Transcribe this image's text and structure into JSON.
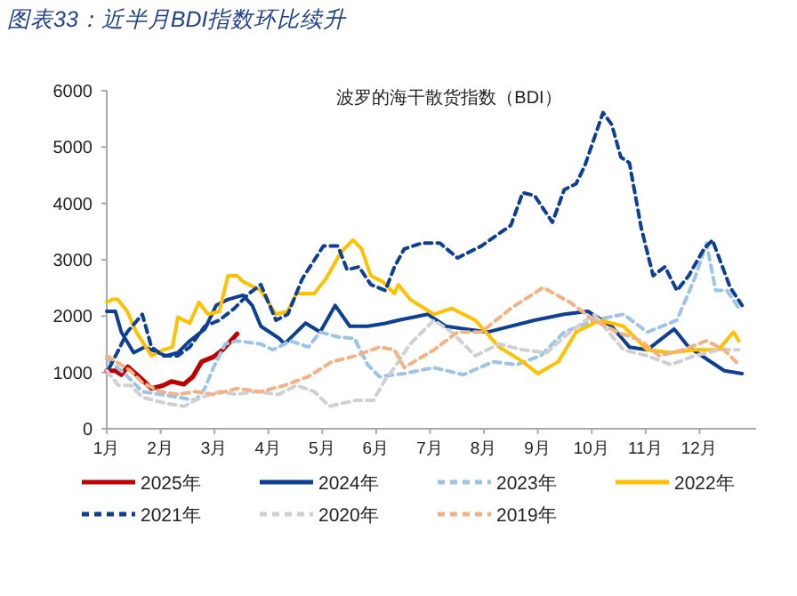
{
  "chart_data": {
    "type": "line",
    "title": "图表33：近半月BDI指数环比续升",
    "subtitle": "波罗的海干散货指数（BDI）",
    "xlim": [
      1,
      13.05
    ],
    "xticks": [
      {
        "value": 1,
        "label": "1月"
      },
      {
        "value": 2,
        "label": "2月"
      },
      {
        "value": 3,
        "label": "3月"
      },
      {
        "value": 4,
        "label": "4月"
      },
      {
        "value": 5,
        "label": "5月"
      },
      {
        "value": 6,
        "label": "6月"
      },
      {
        "value": 7,
        "label": "7月"
      },
      {
        "value": 8,
        "label": "8月"
      },
      {
        "value": 9,
        "label": "9月"
      },
      {
        "value": 10,
        "label": "10月"
      },
      {
        "value": 11,
        "label": "11月"
      },
      {
        "value": 12,
        "label": "12月"
      }
    ],
    "ylim": [
      0,
      6000
    ],
    "yticks": [
      0,
      1000,
      2000,
      3000,
      4000,
      5000,
      6000
    ],
    "grid": false,
    "legend": "bottom",
    "marker": "none",
    "series": [
      {
        "name": "2025年",
        "color": "#c00000",
        "line_style": "solid",
        "x": [
          1,
          1.16,
          1.27,
          1.39,
          1.6,
          1.83,
          2.05,
          2.2,
          2.43,
          2.6,
          2.76,
          2.98,
          3.15,
          3.25,
          3.42
        ],
        "values": [
          1030,
          1030,
          960,
          1100,
          925,
          715,
          770,
          840,
          790,
          925,
          1190,
          1275,
          1400,
          1505,
          1685
        ]
      },
      {
        "name": "2024年",
        "color": "#0d3f94",
        "line_style": "solid",
        "x": [
          1,
          1.16,
          1.27,
          1.5,
          1.7,
          2.1,
          2.32,
          2.54,
          2.82,
          3.03,
          3.25,
          3.53,
          3.7,
          3.86,
          4.19,
          4.3,
          4.52,
          4.69,
          4.96,
          5.24,
          5.51,
          5.84,
          6.17,
          6.41,
          6.96,
          7.29,
          8.06,
          8.94,
          9.49,
          9.93,
          10.37,
          10.7,
          11.03,
          11.53,
          11.8,
          12.13,
          12.46,
          12.79
        ],
        "values": [
          2085,
          2085,
          1716,
          1350,
          1450,
          1295,
          1350,
          1560,
          1770,
          2190,
          2295,
          2370,
          2190,
          1820,
          1610,
          1505,
          1716,
          1875,
          1716,
          2190,
          1820,
          1820,
          1870,
          1927,
          2032,
          1820,
          1716,
          1927,
          2032,
          2085,
          1820,
          1450,
          1400,
          1770,
          1450,
          1240,
          1030,
          980
        ]
      },
      {
        "name": "2023年",
        "color": "#9dc3e6",
        "line_style": "dashed",
        "x": [
          1,
          1.33,
          1.66,
          1.99,
          2.32,
          2.65,
          2.82,
          2.98,
          3.2,
          3.42,
          3.86,
          4.08,
          4.41,
          4.74,
          4.96,
          5.29,
          5.6,
          5.84,
          6.06,
          6.52,
          7.07,
          7.62,
          8.17,
          8.6,
          9.05,
          9.49,
          10.04,
          10.59,
          11.03,
          11.58,
          11.91,
          12.13,
          12.3,
          12.51,
          12.73
        ],
        "values": [
          1240,
          980,
          660,
          610,
          560,
          505,
          715,
          1085,
          1505,
          1560,
          1505,
          1400,
          1560,
          1450,
          1716,
          1630,
          1600,
          1137,
          925,
          980,
          1085,
          960,
          1190,
          1137,
          1295,
          1716,
          1927,
          2032,
          1716,
          1927,
          2665,
          3296,
          2454,
          2454,
          2138
        ]
      },
      {
        "name": "2022年",
        "color": "#ffc000",
        "line_style": "solid",
        "x": [
          1,
          1.11,
          1.2,
          1.38,
          1.55,
          1.83,
          2.05,
          2.22,
          2.32,
          2.54,
          2.71,
          2.88,
          3.09,
          3.25,
          3.42,
          3.53,
          3.86,
          4.14,
          4.36,
          4.52,
          4.85,
          5.07,
          5.35,
          5.57,
          5.73,
          5.9,
          6.12,
          6.34,
          6.41,
          6.63,
          7.07,
          7.4,
          7.84,
          8.28,
          8.72,
          9,
          9.38,
          9.71,
          10.15,
          10.59,
          11.03,
          11.47,
          11.91,
          12.35,
          12.63,
          12.73
        ],
        "values": [
          2250,
          2296,
          2296,
          2085,
          1716,
          1295,
          1400,
          1450,
          1980,
          1874,
          2243,
          2032,
          2085,
          2717,
          2717,
          2611,
          2454,
          2032,
          2085,
          2400,
          2400,
          2664,
          3138,
          3349,
          3190,
          2717,
          2611,
          2400,
          2559,
          2296,
          2032,
          2138,
          1927,
          1450,
          1190,
          980,
          1190,
          1716,
          1927,
          1820,
          1400,
          1350,
          1400,
          1400,
          1716,
          1560
        ]
      },
      {
        "name": "2021年",
        "color": "#0d3f94",
        "line_style": "dashed",
        "x": [
          1.05,
          1.22,
          1.38,
          1.66,
          1.83,
          2.05,
          2.32,
          2.54,
          2.82,
          3.09,
          3.37,
          3.64,
          3.86,
          4.14,
          4.36,
          4.63,
          5.02,
          5.29,
          5.46,
          5.68,
          5.9,
          6.17,
          6.34,
          6.52,
          6.85,
          7.18,
          7.51,
          7.95,
          8.5,
          8.72,
          8.94,
          9.27,
          9.49,
          9.71,
          9.87,
          10.21,
          10.37,
          10.54,
          10.7,
          10.92,
          11.14,
          11.36,
          11.58,
          11.8,
          12.08,
          12.24,
          12.57,
          12.79
        ],
        "values": [
          1085,
          1400,
          1716,
          2032,
          1450,
          1295,
          1295,
          1450,
          1820,
          1927,
          2138,
          2400,
          2559,
          1927,
          2032,
          2664,
          3243,
          3243,
          2822,
          2875,
          2559,
          2454,
          2875,
          3190,
          3296,
          3296,
          3032,
          3243,
          3612,
          4191,
          4138,
          3664,
          4243,
          4349,
          4665,
          5612,
          5402,
          4823,
          4717,
          3559,
          2717,
          2875,
          2454,
          2717,
          3190,
          3349,
          2506,
          2190
        ]
      },
      {
        "name": "2020年",
        "color": "#d0d0d0",
        "line_style": "dashed",
        "x": [
          1,
          1.22,
          1.44,
          1.66,
          2.1,
          2.43,
          2.76,
          3.09,
          3.42,
          3.75,
          4.19,
          4.52,
          4.85,
          5.13,
          5.62,
          5.95,
          6.17,
          6.34,
          6.63,
          7.07,
          7.4,
          7.84,
          8.28,
          8.72,
          9.16,
          9.6,
          10.04,
          10.59,
          11.03,
          11.47,
          11.91,
          12.35,
          12.73
        ],
        "values": [
          1030,
          770,
          770,
          560,
          450,
          400,
          560,
          660,
          610,
          660,
          610,
          770,
          660,
          400,
          505,
          505,
          875,
          1085,
          1505,
          1927,
          1716,
          1295,
          1505,
          1400,
          1350,
          1716,
          2032,
          1400,
          1295,
          1137,
          1295,
          1400,
          1400
        ]
      },
      {
        "name": "2019年",
        "color": "#f4b183",
        "line_style": "dashed",
        "x": [
          1,
          1.44,
          1.66,
          1.99,
          2.32,
          2.65,
          2.98,
          3.42,
          3.86,
          4.3,
          4.74,
          5.18,
          5.62,
          6.06,
          6.34,
          6.52,
          7.07,
          7.51,
          7.95,
          8.5,
          9.1,
          9.6,
          10.04,
          10.48,
          10.92,
          11.25,
          11.69,
          12.13,
          12.46,
          12.73
        ],
        "values": [
          1295,
          1030,
          820,
          660,
          610,
          660,
          610,
          715,
          660,
          770,
          925,
          1190,
          1295,
          1450,
          1400,
          1085,
          1400,
          1716,
          1716,
          2138,
          2506,
          2243,
          1927,
          1716,
          1560,
          1295,
          1400,
          1560,
          1400,
          1137
        ]
      }
    ]
  }
}
